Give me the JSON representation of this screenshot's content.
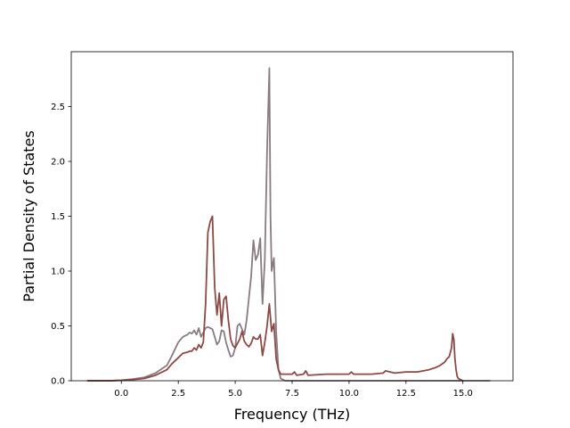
{
  "chart_data": {
    "type": "line",
    "title": "",
    "xlabel": "Frequency (THz)",
    "ylabel": "Partial Density of States",
    "xlim": [
      -2.2,
      17.2
    ],
    "ylim": [
      0.0,
      3.0
    ],
    "xticks": [
      0.0,
      2.5,
      5.0,
      7.5,
      10.0,
      12.5,
      15.0
    ],
    "xtick_labels": [
      "0.0",
      "2.5",
      "5.0",
      "7.5",
      "10.0",
      "12.5",
      "15.0"
    ],
    "yticks": [
      0.0,
      0.5,
      1.0,
      1.5,
      2.0,
      2.5
    ],
    "ytick_labels": [
      "0.0",
      "0.5",
      "1.0",
      "1.5",
      "2.0",
      "2.5"
    ],
    "grid": false,
    "legend": "none",
    "series": [
      {
        "color": "#8a7b81",
        "x": [
          -1.5,
          -0.5,
          0.0,
          0.5,
          1.0,
          1.5,
          2.0,
          2.2,
          2.5,
          2.7,
          2.9,
          3.0,
          3.1,
          3.2,
          3.3,
          3.4,
          3.5,
          3.6,
          3.7,
          3.8,
          3.9,
          4.0,
          4.1,
          4.2,
          4.3,
          4.4,
          4.5,
          4.6,
          4.7,
          4.8,
          4.9,
          5.0,
          5.1,
          5.2,
          5.3,
          5.4,
          5.5,
          5.6,
          5.7,
          5.8,
          5.9,
          6.0,
          6.1,
          6.2,
          6.3,
          6.4,
          6.5,
          6.55,
          6.6,
          6.7,
          6.8,
          6.9,
          7.0,
          7.2,
          7.5,
          8.0,
          10.0,
          12.5,
          14.0,
          14.5,
          14.6,
          14.7,
          14.8,
          15.0,
          16.2
        ],
        "y": [
          0.0,
          0.0,
          0.005,
          0.015,
          0.03,
          0.07,
          0.14,
          0.22,
          0.35,
          0.4,
          0.42,
          0.44,
          0.43,
          0.46,
          0.42,
          0.48,
          0.4,
          0.44,
          0.48,
          0.49,
          0.48,
          0.47,
          0.4,
          0.33,
          0.36,
          0.46,
          0.45,
          0.35,
          0.28,
          0.22,
          0.23,
          0.3,
          0.5,
          0.52,
          0.47,
          0.42,
          0.55,
          0.75,
          0.95,
          1.28,
          1.1,
          1.15,
          1.3,
          0.7,
          1.1,
          2.1,
          2.85,
          1.5,
          1.0,
          1.12,
          0.45,
          0.1,
          0.02,
          0.0,
          0.0,
          0.0,
          0.0,
          0.0,
          0.0,
          0.0,
          0.0,
          0.0,
          0.0,
          0.0,
          0.0
        ]
      },
      {
        "color": "#8b4a45",
        "x": [
          -1.5,
          -0.5,
          0.0,
          0.5,
          1.0,
          1.5,
          2.0,
          2.2,
          2.5,
          2.7,
          2.9,
          3.0,
          3.1,
          3.2,
          3.3,
          3.4,
          3.5,
          3.6,
          3.7,
          3.8,
          3.9,
          4.0,
          4.1,
          4.2,
          4.3,
          4.4,
          4.5,
          4.6,
          4.7,
          4.8,
          4.9,
          5.0,
          5.1,
          5.2,
          5.3,
          5.4,
          5.5,
          5.6,
          5.7,
          5.8,
          5.9,
          6.0,
          6.1,
          6.2,
          6.3,
          6.4,
          6.5,
          6.6,
          6.7,
          6.8,
          6.9,
          7.0,
          7.2,
          7.5,
          7.6,
          7.7,
          8.0,
          8.1,
          8.2,
          9.0,
          10.0,
          10.1,
          10.2,
          11.0,
          11.5,
          11.6,
          12.0,
          12.5,
          13.0,
          13.5,
          13.8,
          14.0,
          14.2,
          14.3,
          14.4,
          14.5,
          14.55,
          14.6,
          14.65,
          14.7,
          14.75,
          14.8,
          14.9,
          15.0
        ],
        "y": [
          0.0,
          0.0,
          0.003,
          0.01,
          0.02,
          0.05,
          0.1,
          0.15,
          0.21,
          0.25,
          0.26,
          0.27,
          0.27,
          0.3,
          0.28,
          0.33,
          0.3,
          0.35,
          0.7,
          1.35,
          1.45,
          1.5,
          0.85,
          0.6,
          0.8,
          0.5,
          0.74,
          0.77,
          0.55,
          0.38,
          0.32,
          0.3,
          0.34,
          0.38,
          0.45,
          0.36,
          0.33,
          0.31,
          0.34,
          0.4,
          0.38,
          0.38,
          0.42,
          0.23,
          0.35,
          0.5,
          0.7,
          0.45,
          0.52,
          0.2,
          0.1,
          0.06,
          0.06,
          0.06,
          0.08,
          0.05,
          0.06,
          0.09,
          0.05,
          0.06,
          0.06,
          0.08,
          0.06,
          0.06,
          0.07,
          0.09,
          0.07,
          0.08,
          0.08,
          0.1,
          0.12,
          0.14,
          0.17,
          0.2,
          0.22,
          0.3,
          0.43,
          0.38,
          0.2,
          0.1,
          0.04,
          0.02,
          0.01,
          0.0
        ]
      }
    ]
  }
}
